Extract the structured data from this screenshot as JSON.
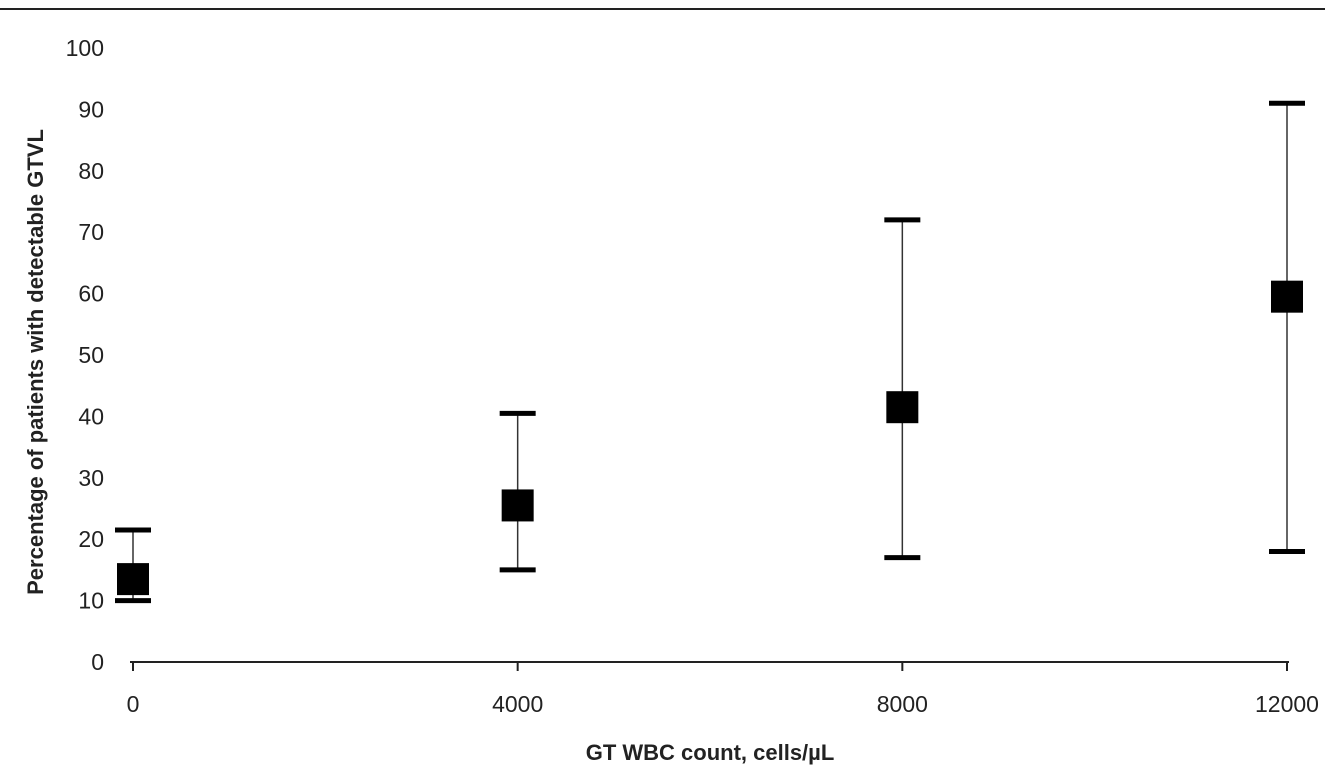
{
  "chart_data": {
    "type": "scatter",
    "title": "",
    "xlabel": "GT WBC count, cells/µL",
    "ylabel": "Percentage of patients with detectable GTVL",
    "xlim": [
      0,
      12000
    ],
    "ylim": [
      0,
      100
    ],
    "x_ticks": [
      0,
      4000,
      8000,
      12000
    ],
    "y_ticks": [
      0,
      10,
      20,
      30,
      40,
      50,
      60,
      70,
      80,
      90,
      100
    ],
    "points": [
      {
        "x": 0,
        "y": 13.5,
        "lower": 10,
        "upper": 21.5
      },
      {
        "x": 4000,
        "y": 25.5,
        "lower": 15,
        "upper": 40.5
      },
      {
        "x": 8000,
        "y": 41.5,
        "lower": 17,
        "upper": 72
      },
      {
        "x": 12000,
        "y": 59.5,
        "lower": 18,
        "upper": 91
      }
    ],
    "marker": "square",
    "error_bars": true,
    "grid": false,
    "legend": "none",
    "colors": {
      "marker": "#000000",
      "axis": "#222222",
      "error_bar": "#333333"
    }
  }
}
